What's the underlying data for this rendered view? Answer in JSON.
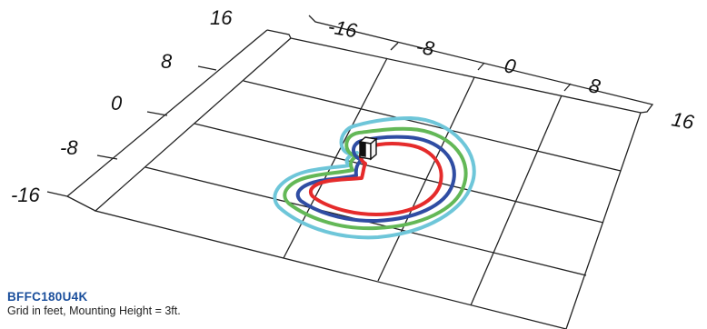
{
  "x_axis": {
    "ticks": [
      "-16",
      "-8",
      "0",
      "8",
      "16"
    ]
  },
  "y_axis": {
    "ticks": [
      "16",
      "8",
      "0",
      "-8",
      "-16"
    ]
  },
  "caption": {
    "model": "BFFC180U4K",
    "note": "Grid in feet, Mounting Height = 3ft."
  },
  "contour_colors": [
    "#6ec6d9",
    "#63b857",
    "#2f4da3",
    "#e52b2b"
  ],
  "fixture_icon": "wall-fixture-icon"
}
